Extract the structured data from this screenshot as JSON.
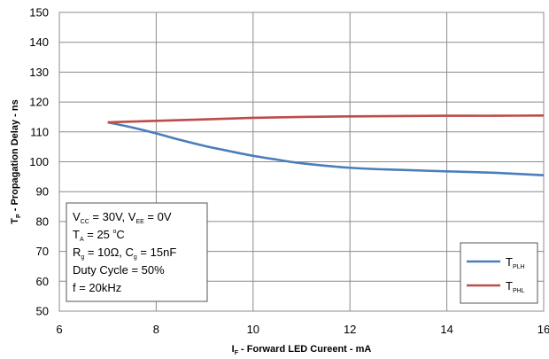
{
  "chart_data": {
    "type": "line",
    "xlim": [
      6,
      16
    ],
    "ylim": [
      50,
      150
    ],
    "xticks": [
      "6",
      "8",
      "10",
      "12",
      "14",
      "16"
    ],
    "yticks": [
      "50",
      "60",
      "70",
      "80",
      "90",
      "100",
      "110",
      "120",
      "130",
      "140",
      "150"
    ],
    "xlabel": {
      "main": "I",
      "sub": "F",
      "rest": " - Forward LED Cureent - mA"
    },
    "ylabel": {
      "main": "T",
      "sub": "P",
      "rest": " - Propagation Delay - ns"
    },
    "grid": true,
    "legend_position": "bottom-right",
    "series": [
      {
        "name": {
          "main": "T",
          "sub": "PLH"
        },
        "color": "#4a7ebb",
        "x": [
          7,
          7.5,
          8,
          8.5,
          9,
          9.5,
          10,
          10.5,
          11,
          12,
          13,
          14,
          15,
          16
        ],
        "y": [
          113.2,
          111.5,
          109.5,
          107.3,
          105.3,
          103.6,
          102.0,
          100.7,
          99.5,
          98.0,
          97.3,
          96.8,
          96.3,
          95.5
        ]
      },
      {
        "name": {
          "main": "T",
          "sub": "PHL"
        },
        "color": "#be4b48",
        "x": [
          7,
          8,
          9,
          10,
          11,
          12,
          13,
          14,
          15,
          16
        ],
        "y": [
          113.2,
          113.7,
          114.2,
          114.7,
          115.0,
          115.2,
          115.3,
          115.4,
          115.4,
          115.5
        ]
      }
    ],
    "conditions": [
      {
        "parts": [
          {
            "t": "V"
          },
          {
            "t": "CC",
            "sub": true
          },
          {
            "t": " = 30V, V"
          },
          {
            "t": "EE",
            "sub": true
          },
          {
            "t": " = 0V"
          }
        ]
      },
      {
        "parts": [
          {
            "t": "T"
          },
          {
            "t": "A",
            "sub": true
          },
          {
            "t": " = 25 "
          },
          {
            "t": "o",
            "sup": true
          },
          {
            "t": "C"
          }
        ]
      },
      {
        "parts": [
          {
            "t": "R"
          },
          {
            "t": "g",
            "sub": true
          },
          {
            "t": " = 10Ω, C"
          },
          {
            "t": "g",
            "sub": true
          },
          {
            "t": " = 15nF"
          }
        ]
      },
      {
        "parts": [
          {
            "t": "Duty Cycle = 50%"
          }
        ]
      },
      {
        "parts": [
          {
            "t": "f = 20kHz"
          }
        ]
      }
    ]
  }
}
